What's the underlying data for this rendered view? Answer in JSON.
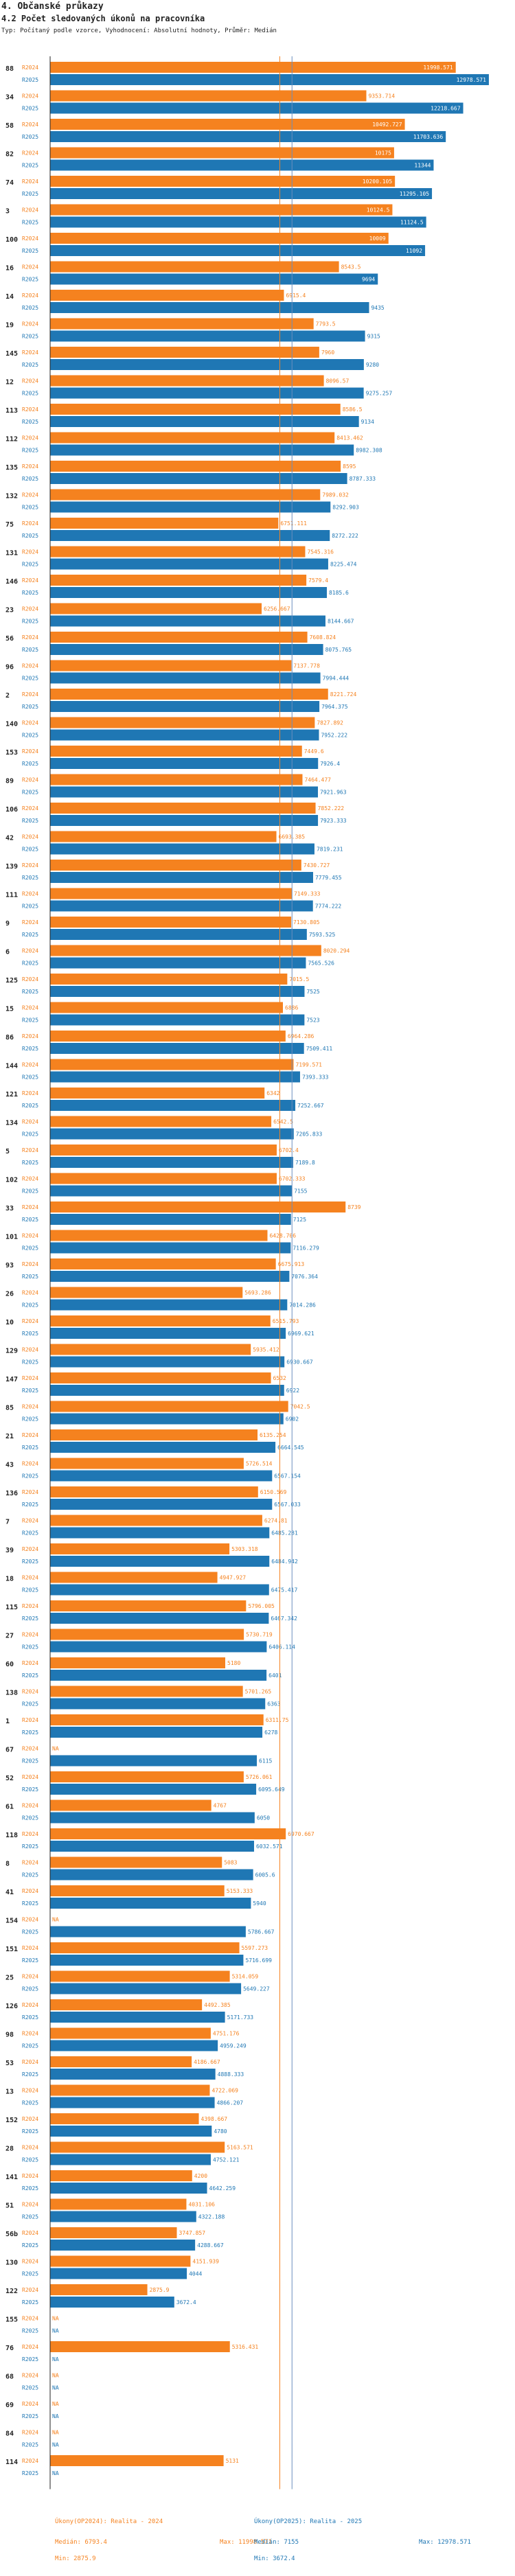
{
  "header": {
    "title": "4. Občanské průkazy",
    "subtitle": "4.2 Počet sledovaných úkonů na pracovníka",
    "note": "Typ: Počítaný podle vzorce, Vyhodnocení: Absolutní hodnoty, Průměr: Medián"
  },
  "colors": {
    "y2024": "#f5821f",
    "y2025": "#1f77b4",
    "axis": "#222222",
    "median": "#6a8fbf"
  },
  "footer": {
    "s2024": {
      "name": "Úkony(OP2024): Realita - 2024",
      "median": "Medián: 6793.4",
      "min": "Min: 2875.9",
      "max": "Max: 11998.571"
    },
    "s2025": {
      "name": "Úkony(OP2025): Realita - 2025",
      "median": "Medián: 7155",
      "min": "Min: 3672.4",
      "max": "Max: 12978.571"
    }
  },
  "chart_data": {
    "type": "bar",
    "orientation": "horizontal",
    "title": "4.2 Počet sledovaných úkonů na pracovníka",
    "xlim": [
      0,
      13000
    ],
    "medians": {
      "R2024": 6793.4,
      "R2025": 7155
    },
    "series_labels": [
      "R2024",
      "R2025"
    ],
    "categories": [
      {
        "id": "88",
        "r2024": 11998.571,
        "r2025": 12978.571,
        "l2024": "11998.571",
        "l2025": "12978.571"
      },
      {
        "id": "34",
        "r2024": 9353.714,
        "r2025": 12218.667,
        "l2024": "9353.714",
        "l2025": "12218.667"
      },
      {
        "id": "58",
        "r2024": 10492.727,
        "r2025": 11703.636,
        "l2024": "10492.727",
        "l2025": "11703.636"
      },
      {
        "id": "82",
        "r2024": 10175,
        "r2025": 11344,
        "l2024": "10175",
        "l2025": "11344"
      },
      {
        "id": "74",
        "r2024": 10200.105,
        "r2025": 11295.105,
        "l2024": "10200.105",
        "l2025": "11295.105"
      },
      {
        "id": "3",
        "r2024": 10124.5,
        "r2025": 11124.5,
        "l2024": "10124.5",
        "l2025": "11124.5"
      },
      {
        "id": "100",
        "r2024": 10009,
        "r2025": 11092,
        "l2024": "10009",
        "l2025": "11092"
      },
      {
        "id": "16",
        "r2024": 8543.5,
        "r2025": 9694,
        "l2024": "8543.5",
        "l2025": "9694"
      },
      {
        "id": "14",
        "r2024": 6915.4,
        "r2025": 9435,
        "l2024": "6915.4",
        "l2025": "9435"
      },
      {
        "id": "19",
        "r2024": 7793.5,
        "r2025": 9315,
        "l2024": "7793.5",
        "l2025": "9315"
      },
      {
        "id": "145",
        "r2024": 7960,
        "r2025": 9280,
        "l2024": "7960",
        "l2025": "9280"
      },
      {
        "id": "12",
        "r2024": 8096.57,
        "r2025": 9275.257,
        "l2024": "8096.57",
        "l2025": "9275.257"
      },
      {
        "id": "113",
        "r2024": 8586.5,
        "r2025": 9134,
        "l2024": "8586.5",
        "l2025": "9134"
      },
      {
        "id": "112",
        "r2024": 8413.462,
        "r2025": 8982.308,
        "l2024": "8413.462",
        "l2025": "8982.308"
      },
      {
        "id": "135",
        "r2024": 8595,
        "r2025": 8787.333,
        "l2024": "8595",
        "l2025": "8787.333"
      },
      {
        "id": "132",
        "r2024": 7989.032,
        "r2025": 8292.903,
        "l2024": "7989.032",
        "l2025": "8292.903"
      },
      {
        "id": "75",
        "r2024": 6751.111,
        "r2025": 8272.222,
        "l2024": "6751.111",
        "l2025": "8272.222"
      },
      {
        "id": "131",
        "r2024": 7545.316,
        "r2025": 8225.474,
        "l2024": "7545.316",
        "l2025": "8225.474"
      },
      {
        "id": "146",
        "r2024": 7579.4,
        "r2025": 8185.6,
        "l2024": "7579.4",
        "l2025": "8185.6"
      },
      {
        "id": "23",
        "r2024": 6256.667,
        "r2025": 8144.667,
        "l2024": "6256.667",
        "l2025": "8144.667"
      },
      {
        "id": "56",
        "r2024": 7608.824,
        "r2025": 8075.765,
        "l2024": "7608.824",
        "l2025": "8075.765"
      },
      {
        "id": "96",
        "r2024": 7137.778,
        "r2025": 7994.444,
        "l2024": "7137.778",
        "l2025": "7994.444"
      },
      {
        "id": "2",
        "r2024": 8221.724,
        "r2025": 7964.375,
        "l2024": "8221.724",
        "l2025": "7964.375"
      },
      {
        "id": "140",
        "r2024": 7827.892,
        "r2025": 7952.222,
        "l2024": "7827.892",
        "l2025": "7952.222"
      },
      {
        "id": "153",
        "r2024": 7449.6,
        "r2025": 7926.4,
        "l2024": "7449.6",
        "l2025": "7926.4"
      },
      {
        "id": "89",
        "r2024": 7464.477,
        "r2025": 7921.963,
        "l2024": "7464.477",
        "l2025": "7921.963"
      },
      {
        "id": "106",
        "r2024": 7852.222,
        "r2025": 7923.333,
        "l2024": "7852.222",
        "l2025": "7923.333"
      },
      {
        "id": "42",
        "r2024": 6693.385,
        "r2025": 7819.231,
        "l2024": "6693.385",
        "l2025": "7819.231"
      },
      {
        "id": "139",
        "r2024": 7430.727,
        "r2025": 7779.455,
        "l2024": "7430.727",
        "l2025": "7779.455"
      },
      {
        "id": "111",
        "r2024": 7149.333,
        "r2025": 7774.222,
        "l2024": "7149.333",
        "l2025": "7774.222"
      },
      {
        "id": "9",
        "r2024": 7130.805,
        "r2025": 7593.525,
        "l2024": "7130.805",
        "l2025": "7593.525"
      },
      {
        "id": "6",
        "r2024": 8020.294,
        "r2025": 7565.526,
        "l2024": "8020.294",
        "l2025": "7565.526"
      },
      {
        "id": "125",
        "r2024": 7015.5,
        "r2025": 7525,
        "l2024": "7015.5",
        "l2025": "7525"
      },
      {
        "id": "15",
        "r2024": 6886,
        "r2025": 7523,
        "l2024": "6886",
        "l2025": "7523"
      },
      {
        "id": "86",
        "r2024": 6964.286,
        "r2025": 7509.411,
        "l2024": "6964.286",
        "l2025": "7509.411"
      },
      {
        "id": "144",
        "r2024": 7199.571,
        "r2025": 7393.333,
        "l2024": "7199.571",
        "l2025": "7393.333"
      },
      {
        "id": "121",
        "r2024": 6342,
        "r2025": 7252.667,
        "l2024": "6342",
        "l2025": "7252.667"
      },
      {
        "id": "134",
        "r2024": 6542.5,
        "r2025": 7205.833,
        "l2024": "6542.5",
        "l2025": "7205.833"
      },
      {
        "id": "5",
        "r2024": 6702.4,
        "r2025": 7189.8,
        "l2024": "6702.4",
        "l2025": "7189.8"
      },
      {
        "id": "102",
        "r2024": 6702.333,
        "r2025": 7155,
        "l2024": "6702.333",
        "l2025": "7155"
      },
      {
        "id": "33",
        "r2024": 8739,
        "r2025": 7125,
        "l2024": "8739",
        "l2025": "7125"
      },
      {
        "id": "101",
        "r2024": 6428.706,
        "r2025": 7116.279,
        "l2024": "6428.706",
        "l2025": "7116.279"
      },
      {
        "id": "93",
        "r2024": 6675.913,
        "r2025": 7076.364,
        "l2024": "6675.913",
        "l2025": "7076.364"
      },
      {
        "id": "26",
        "r2024": 5693.286,
        "r2025": 7014.286,
        "l2024": "5693.286",
        "l2025": "7014.286"
      },
      {
        "id": "10",
        "r2024": 6515.793,
        "r2025": 6969.621,
        "l2024": "6515.793",
        "l2025": "6969.621"
      },
      {
        "id": "129",
        "r2024": 5935.412,
        "r2025": 6930.667,
        "l2024": "5935.412",
        "l2025": "6930.667"
      },
      {
        "id": "147",
        "r2024": 6532,
        "r2025": 6922,
        "l2024": "6532",
        "l2025": "6922"
      },
      {
        "id": "85",
        "r2024": 7042.5,
        "r2025": 6902,
        "l2024": "7042.5",
        "l2025": "6902"
      },
      {
        "id": "21",
        "r2024": 6135.254,
        "r2025": 6664.545,
        "l2024": "6135.254",
        "l2025": "6664.545"
      },
      {
        "id": "43",
        "r2024": 5726.514,
        "r2025": 6567.154,
        "l2024": "5726.514",
        "l2025": "6567.154"
      },
      {
        "id": "136",
        "r2024": 6150.569,
        "r2025": 6567.033,
        "l2024": "6150.569",
        "l2025": "6567.033"
      },
      {
        "id": "7",
        "r2024": 6274.81,
        "r2025": 6485.281,
        "l2024": "6274.81",
        "l2025": "6485.281"
      },
      {
        "id": "39",
        "r2024": 5303.318,
        "r2025": 6484.942,
        "l2024": "5303.318",
        "l2025": "6484.942"
      },
      {
        "id": "18",
        "r2024": 4947.927,
        "r2025": 6475.417,
        "l2024": "4947.927",
        "l2025": "6475.417"
      },
      {
        "id": "115",
        "r2024": 5796.005,
        "r2025": 6467.342,
        "l2024": "5796.005",
        "l2025": "6467.342"
      },
      {
        "id": "27",
        "r2024": 5730.719,
        "r2025": 6406.114,
        "l2024": "5730.719",
        "l2025": "6406.114"
      },
      {
        "id": "60",
        "r2024": 5180,
        "r2025": 6401,
        "l2024": "5180",
        "l2025": "6401"
      },
      {
        "id": "138",
        "r2024": 5701.265,
        "r2025": 6363,
        "l2024": "5701.265",
        "l2025": "6363"
      },
      {
        "id": "1",
        "r2024": 6311.75,
        "r2025": 6278,
        "l2024": "6311.75",
        "l2025": "6278"
      },
      {
        "id": "67",
        "r2024": 0,
        "r2025": 6115,
        "l2024": "NA",
        "l2025": "6115"
      },
      {
        "id": "52",
        "r2024": 5726.061,
        "r2025": 6095.649,
        "l2024": "5726.061",
        "l2025": "6095.649"
      },
      {
        "id": "61",
        "r2024": 4767,
        "r2025": 6050,
        "l2024": "4767",
        "l2025": "6050"
      },
      {
        "id": "118",
        "r2024": 6970.667,
        "r2025": 6032.571,
        "l2024": "6970.667",
        "l2025": "6032.571"
      },
      {
        "id": "8",
        "r2024": 5083,
        "r2025": 6005.6,
        "l2024": "5083",
        "l2025": "6005.6"
      },
      {
        "id": "41",
        "r2024": 5153.333,
        "r2025": 5940,
        "l2024": "5153.333",
        "l2025": "5940"
      },
      {
        "id": "154",
        "r2024": 0,
        "r2025": 5786.667,
        "l2024": "NA",
        "l2025": "5786.667"
      },
      {
        "id": "151",
        "r2024": 5597.273,
        "r2025": 5716.699,
        "l2024": "5597.273",
        "l2025": "5716.699"
      },
      {
        "id": "25",
        "r2024": 5314.059,
        "r2025": 5649.227,
        "l2024": "5314.059",
        "l2025": "5649.227"
      },
      {
        "id": "126",
        "r2024": 4492.385,
        "r2025": 5171.733,
        "l2024": "4492.385",
        "l2025": "5171.733"
      },
      {
        "id": "98",
        "r2024": 4751.176,
        "r2025": 4959.249,
        "l2024": "4751.176",
        "l2025": "4959.249"
      },
      {
        "id": "53",
        "r2024": 4186.667,
        "r2025": 4888.333,
        "l2024": "4186.667",
        "l2025": "4888.333"
      },
      {
        "id": "13",
        "r2024": 4722.069,
        "r2025": 4866.207,
        "l2024": "4722.069",
        "l2025": "4866.207"
      },
      {
        "id": "152",
        "r2024": 4398.667,
        "r2025": 4780,
        "l2024": "4398.667",
        "l2025": "4780"
      },
      {
        "id": "28",
        "r2024": 5163.571,
        "r2025": 4752.121,
        "l2024": "5163.571",
        "l2025": "4752.121"
      },
      {
        "id": "141",
        "r2024": 4200,
        "r2025": 4642.259,
        "l2024": "4200",
        "l2025": "4642.259"
      },
      {
        "id": "51",
        "r2024": 4031.106,
        "r2025": 4322.188,
        "l2024": "4031.106",
        "l2025": "4322.188"
      },
      {
        "id": "56b",
        "r2024": 3747.857,
        "r2025": 4288.667,
        "l2024": "3747.857",
        "l2025": "4288.667"
      },
      {
        "id": "130",
        "r2024": 4151.939,
        "r2025": 4044,
        "l2024": "4151.939",
        "l2025": "4044"
      },
      {
        "id": "122",
        "r2024": 2875.9,
        "r2025": 3672.4,
        "l2024": "2875.9",
        "l2025": "3672.4"
      },
      {
        "id": "155",
        "r2024": 0,
        "r2025": 0,
        "l2024": "NA",
        "l2025": "NA"
      },
      {
        "id": "76",
        "r2024": 5316.431,
        "r2025": 0,
        "l2024": "5316.431",
        "l2025": "NA"
      },
      {
        "id": "68",
        "r2024": 0,
        "r2025": 0,
        "l2024": "NA",
        "l2025": "NA"
      },
      {
        "id": "69",
        "r2024": 0,
        "r2025": 0,
        "l2024": "NA",
        "l2025": "NA"
      },
      {
        "id": "84",
        "r2024": 0,
        "r2025": 0,
        "l2024": "NA",
        "l2025": "NA"
      },
      {
        "id": "114",
        "r2024": 5131,
        "r2025": 0,
        "l2024": "5131",
        "l2025": "NA"
      }
    ]
  }
}
